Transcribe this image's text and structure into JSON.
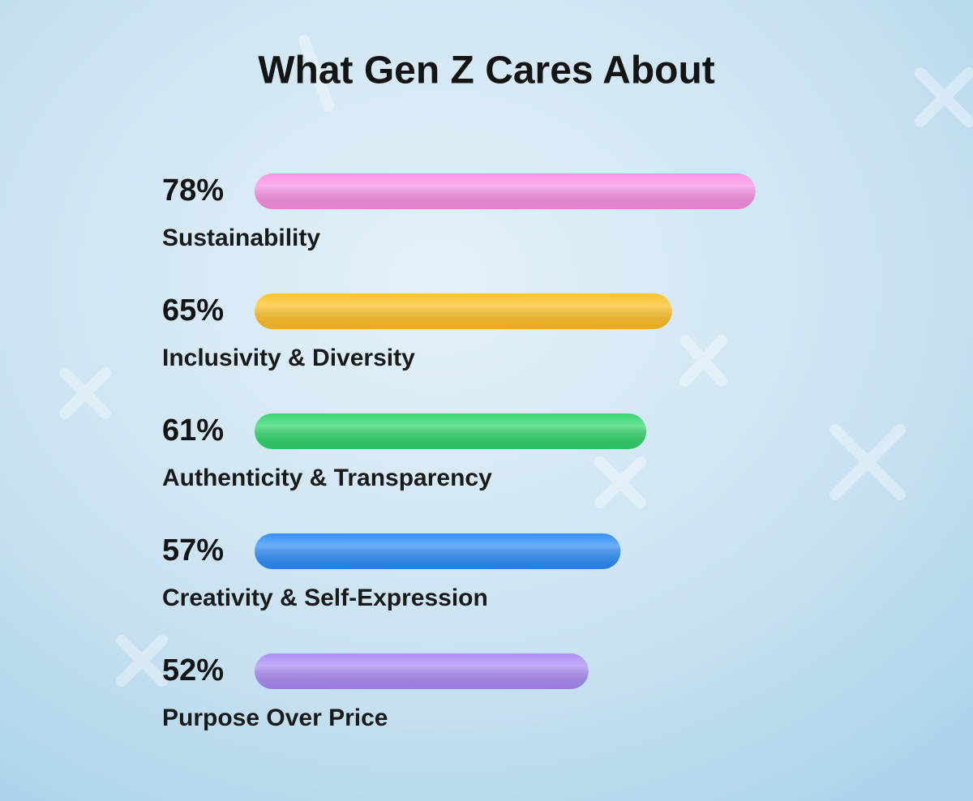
{
  "chart_data": {
    "type": "bar",
    "orientation": "horizontal",
    "title": "What Gen Z Cares About",
    "categories": [
      "Sustainability",
      "Inclusivity & Diversity",
      "Authenticity & Transparency",
      "Creativity & Self-Expression",
      "Purpose Over Price"
    ],
    "values": [
      78,
      65,
      61,
      57,
      52
    ],
    "value_labels": [
      "78%",
      "65%",
      "61%",
      "57%",
      "52%"
    ],
    "colors": [
      "#f98ee3",
      "#fdbf22",
      "#2ed36a",
      "#2b8cf6",
      "#a88af5"
    ]
  }
}
